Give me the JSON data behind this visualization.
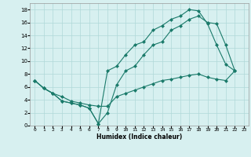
{
  "xlabel": "Humidex (Indice chaleur)",
  "bg_color": "#d7f0f0",
  "grid_color": "#b0d8d8",
  "line_color": "#1a7a6a",
  "xlim": [
    -0.5,
    23.5
  ],
  "ylim": [
    0,
    19
  ],
  "xticks": [
    0,
    1,
    2,
    3,
    4,
    5,
    6,
    7,
    8,
    9,
    10,
    11,
    12,
    13,
    14,
    15,
    16,
    17,
    18,
    19,
    20,
    21,
    22,
    23
  ],
  "yticks": [
    0,
    2,
    4,
    6,
    8,
    10,
    12,
    14,
    16,
    18
  ],
  "line1_x": [
    0,
    1,
    2,
    3,
    4,
    5,
    6,
    7,
    8,
    9,
    10,
    11,
    12,
    13,
    14,
    15,
    16,
    17,
    18,
    19,
    20,
    21,
    22
  ],
  "line1_y": [
    7.0,
    5.8,
    5.0,
    3.8,
    3.5,
    3.2,
    2.7,
    0.3,
    2.0,
    6.3,
    8.5,
    9.2,
    11.0,
    12.5,
    13.0,
    14.8,
    15.5,
    16.5,
    17.0,
    16.0,
    15.8,
    12.5,
    8.5
  ],
  "line2_x": [
    0,
    1,
    2,
    3,
    4,
    5,
    6,
    7,
    8,
    9,
    10,
    11,
    12,
    13,
    14,
    15,
    16,
    17,
    18,
    19,
    20,
    21,
    22
  ],
  "line2_y": [
    7.0,
    5.8,
    5.0,
    3.8,
    3.5,
    3.2,
    2.7,
    0.3,
    8.5,
    9.2,
    11.0,
    12.5,
    13.0,
    14.8,
    15.5,
    16.5,
    17.0,
    18.0,
    17.8,
    15.8,
    12.5,
    9.5,
    8.5
  ],
  "line3_x": [
    0,
    1,
    2,
    3,
    4,
    5,
    6,
    7,
    8,
    9,
    10,
    11,
    12,
    13,
    14,
    15,
    16,
    17,
    18,
    19,
    20,
    21,
    22
  ],
  "line3_y": [
    7.0,
    5.8,
    5.0,
    4.5,
    3.8,
    3.5,
    3.2,
    3.0,
    3.0,
    4.5,
    5.0,
    5.5,
    6.0,
    6.5,
    7.0,
    7.2,
    7.5,
    7.8,
    8.0,
    7.5,
    7.2,
    7.0,
    8.5
  ]
}
